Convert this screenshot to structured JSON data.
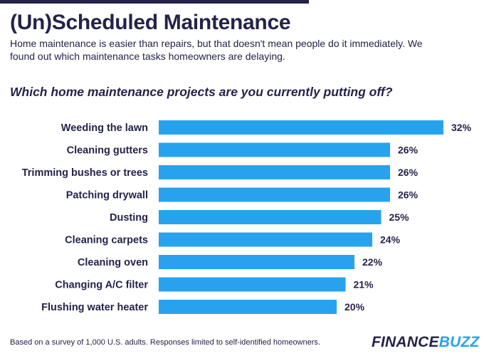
{
  "header": {
    "title": "(Un)Scheduled Maintenance",
    "subtitle": "Home maintenance is easier than repairs, but that doesn't mean people do it immediately. We found out which maintenance tasks homeowners are delaying."
  },
  "footer": {
    "note": "Based on a survey of 1,000 U.S. adults. Responses limited to self-identified homeowners.",
    "logo_part1": "FINANCE",
    "logo_part2": "BUZZ"
  },
  "colors": {
    "bar": "#27a3ee",
    "text": "#23234a",
    "logo_accent": "#27a3ee"
  },
  "chart_data": {
    "type": "bar",
    "orientation": "horizontal",
    "title": "Which home maintenance projects are you currently putting off?",
    "categories": [
      "Weeding the lawn",
      "Cleaning gutters",
      "Trimming bushes or trees",
      "Patching drywall",
      "Dusting",
      "Cleaning carpets",
      "Cleaning oven",
      "Changing A/C filter",
      "Flushing water heater"
    ],
    "values": [
      32,
      26,
      26,
      26,
      25,
      24,
      22,
      21,
      20
    ],
    "value_labels": [
      "32%",
      "26%",
      "26%",
      "26%",
      "25%",
      "24%",
      "22%",
      "21%",
      "20%"
    ],
    "unit": "%",
    "xlim": [
      0,
      32
    ],
    "grid": false,
    "legend": "none"
  }
}
